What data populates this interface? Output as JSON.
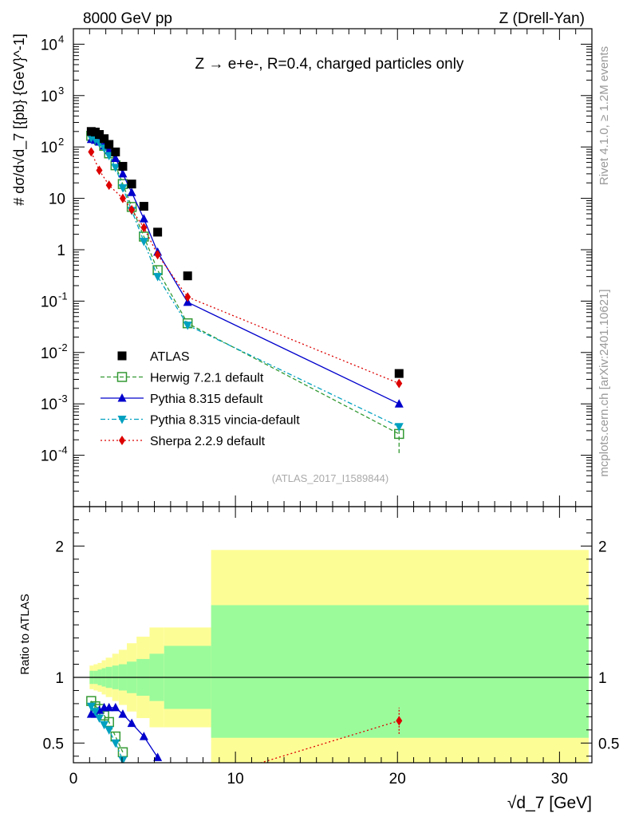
{
  "header": {
    "left": "8000 GeV pp",
    "right": "Z (Drell-Yan)",
    "title": "Z → e+e-, R=0.4, charged particles only",
    "ref": "(ATLAS_2017_I1589844)",
    "side_top": "Rivet 4.1.0, ≥ 1.2M events",
    "side_bottom": "mcplots.cern.ch [arXiv:2401.10621]"
  },
  "chart_data": {
    "type": "scatter",
    "xlabel": "√d_7 [GeV]",
    "ylabel": "# dσ/d√d_7 [{pb} {GeV}^-1]",
    "ratio_ylabel": "Ratio to ATLAS",
    "xlim": [
      0,
      32
    ],
    "ylim": [
      1e-05,
      20000
    ],
    "ratio_ylim": [
      0.35,
      2.3
    ],
    "x_ticks": [
      "0",
      "10",
      "20",
      "30"
    ],
    "y_ticks": [
      "10^-4",
      "10^-3",
      "10^-2",
      "10^-1",
      "1",
      "10",
      "10^2",
      "10^3",
      "10^4"
    ],
    "ratio_ticks": [
      "0.5",
      "1",
      "2"
    ],
    "data": {
      "name": "ATLAS",
      "x": [
        1.1,
        1.35,
        1.6,
        1.9,
        2.2,
        2.6,
        3.05,
        3.6,
        4.35,
        5.2,
        7.05,
        20.1
      ],
      "y": [
        200,
        195,
        175,
        145,
        112,
        80,
        42,
        19,
        7,
        2.2,
        0.31,
        0.0039
      ]
    },
    "bands": {
      "edges": [
        1.0,
        1.25,
        1.5,
        1.75,
        2.0,
        2.4,
        2.8,
        3.3,
        3.9,
        4.7,
        5.6,
        8.5,
        31.8
      ],
      "inner_up": [
        1.05,
        1.05,
        1.06,
        1.07,
        1.08,
        1.09,
        1.1,
        1.12,
        1.14,
        1.18,
        1.24,
        1.55
      ],
      "inner_down": [
        0.95,
        0.95,
        0.94,
        0.93,
        0.92,
        0.91,
        0.9,
        0.88,
        0.86,
        0.82,
        0.76,
        0.54
      ],
      "outer_up": [
        1.09,
        1.1,
        1.11,
        1.13,
        1.15,
        1.18,
        1.21,
        1.26,
        1.31,
        1.38,
        1.38,
        1.97
      ],
      "outer_down": [
        0.91,
        0.9,
        0.89,
        0.87,
        0.85,
        0.82,
        0.79,
        0.74,
        0.69,
        0.62,
        0.62,
        0.03
      ]
    },
    "series": [
      {
        "name": "Herwig 7.2.1 default",
        "color": "#339933",
        "dash": "5,3",
        "marker": "open-square",
        "x": [
          1.1,
          1.35,
          1.6,
          1.9,
          2.2,
          2.6,
          3.05,
          3.6,
          4.35,
          5.2,
          7.05,
          20.1
        ],
        "y": [
          165,
          150,
          135,
          105,
          75,
          44,
          19,
          6.8,
          1.8,
          0.4,
          0.037,
          0.00026
        ],
        "err": [
          [
            20.1,
            0.00011,
            0.00045
          ]
        ],
        "ratio_x": [
          1.1,
          1.35,
          1.6,
          1.9,
          2.2,
          2.6,
          3.05
        ],
        "ratio_y": [
          0.82,
          0.78,
          0.76,
          0.71,
          0.66,
          0.55,
          0.43
        ]
      },
      {
        "name": "Pythia 8.315 default",
        "color": "#0000cc",
        "dash": "",
        "marker": "triangle-up",
        "x": [
          1.1,
          1.35,
          1.6,
          1.9,
          2.2,
          2.6,
          3.05,
          3.6,
          4.35,
          5.2,
          7.05,
          20.1
        ],
        "y": [
          140,
          135,
          125,
          105,
          85,
          60,
          30,
          13,
          4,
          0.9,
          0.095,
          0.001
        ],
        "ratio_x": [
          1.1,
          1.35,
          1.6,
          1.9,
          2.2,
          2.6,
          3.05,
          3.6,
          4.35,
          5.2
        ],
        "ratio_y": [
          0.72,
          0.72,
          0.75,
          0.77,
          0.77,
          0.77,
          0.72,
          0.65,
          0.55,
          0.39
        ]
      },
      {
        "name": "Pythia 8.315 vincia-default",
        "color": "#00a0c0",
        "dash": "6,3,2,3",
        "marker": "triangle-down",
        "x": [
          1.1,
          1.35,
          1.6,
          1.9,
          2.2,
          2.6,
          3.05,
          3.6,
          4.35,
          5.2,
          7.05,
          20.1
        ],
        "y": [
          150,
          140,
          120,
          95,
          68,
          40,
          16,
          5.8,
          1.45,
          0.3,
          0.034,
          0.00036
        ],
        "ratio_x": [
          1.1,
          1.35,
          1.6,
          1.9,
          2.2,
          2.6,
          3.05
        ],
        "ratio_y": [
          0.78,
          0.74,
          0.69,
          0.64,
          0.6,
          0.5,
          0.37
        ]
      },
      {
        "name": "Sherpa 2.2.9 default",
        "color": "#dd0000",
        "dash": "2,3",
        "marker": "diamond",
        "x": [
          1.1,
          1.6,
          2.2,
          3.05,
          3.6,
          4.35,
          5.2,
          7.05,
          20.1
        ],
        "y": [
          80,
          35,
          18,
          10,
          6,
          2.7,
          0.8,
          0.12,
          0.0025
        ],
        "ratio_x": [
          20.1
        ],
        "ratio_y": [
          0.67
        ],
        "ratio_err": [
          [
            20.1,
            0.57,
            0.77
          ]
        ]
      }
    ]
  }
}
